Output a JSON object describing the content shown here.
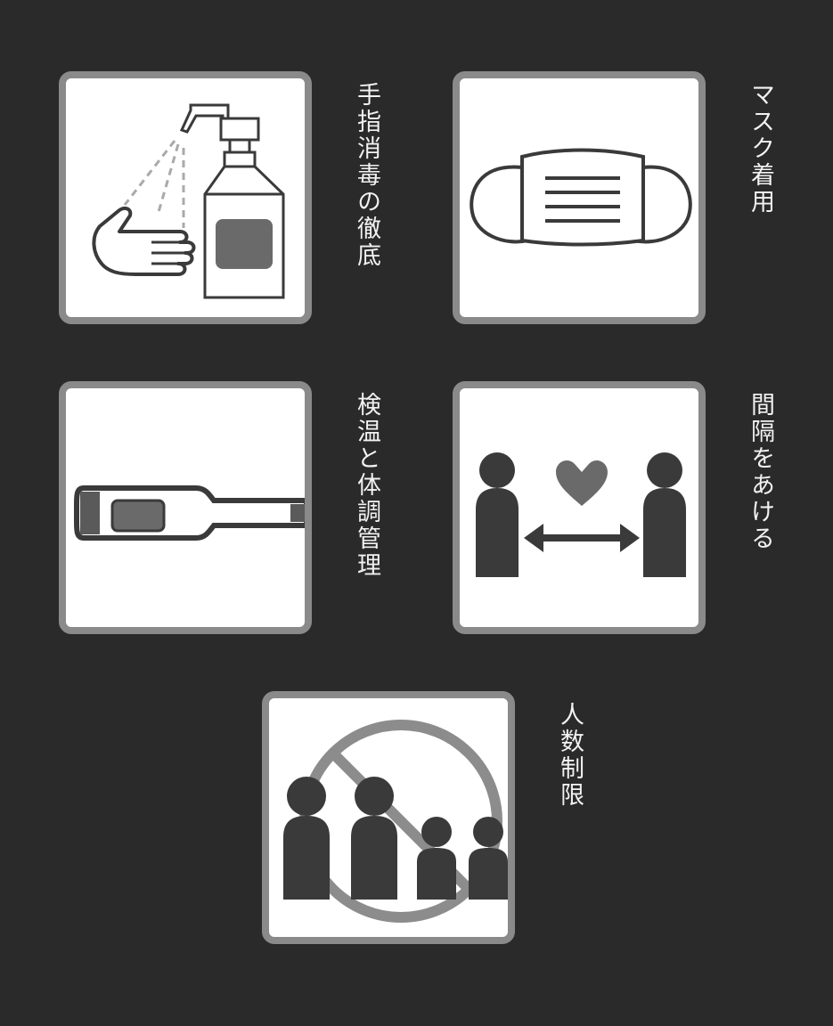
{
  "items": [
    {
      "label": "手指消毒の徹底",
      "icon": "hand-sanitizer-icon"
    },
    {
      "label": "マスク着用",
      "icon": "face-mask-icon"
    },
    {
      "label": "検温と体調管理",
      "icon": "thermometer-icon"
    },
    {
      "label": "間隔をあける",
      "icon": "social-distance-icon"
    },
    {
      "label": "人数制限",
      "icon": "crowd-limit-icon"
    }
  ],
  "colors": {
    "background": "#2a2a2a",
    "card": "#ffffff",
    "card_border": "#8a8a8a",
    "icon_dark": "#3a3a3a",
    "icon_mid": "#666666",
    "label": "#f2f2f2"
  }
}
